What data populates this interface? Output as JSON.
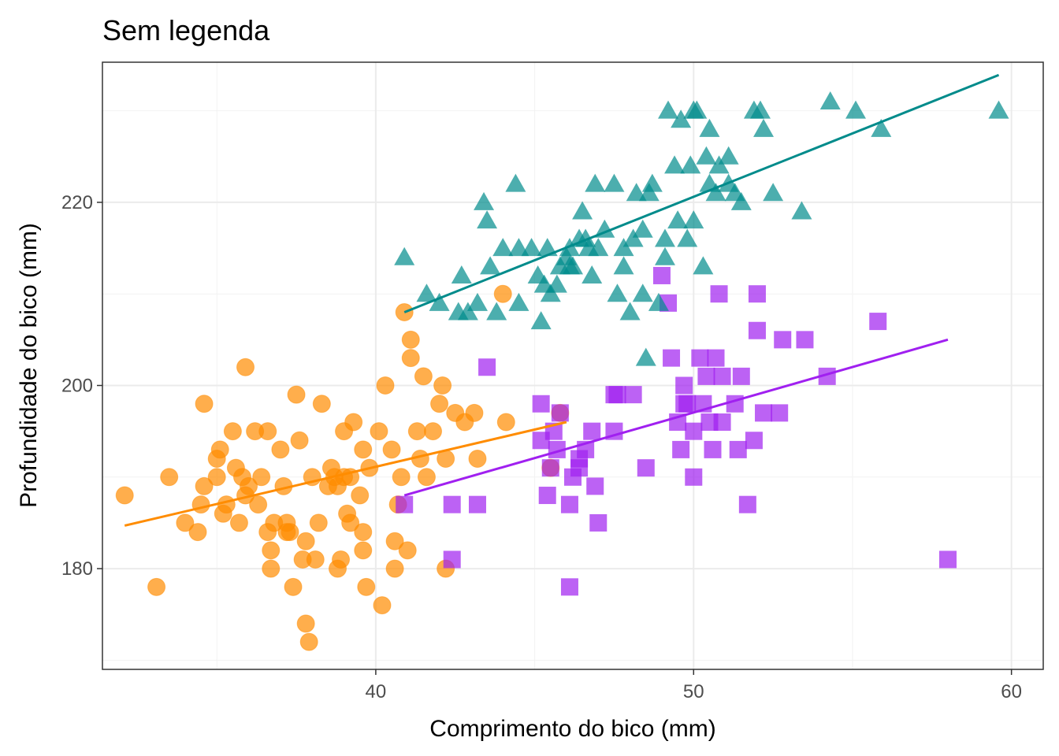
{
  "chart_data": {
    "type": "scatter",
    "title": "Sem legenda",
    "xlabel": "Comprimento do bico (mm)",
    "ylabel": "Profundidade do bico (mm)",
    "xlim": [
      31.4,
      61.0
    ],
    "ylim": [
      169.0,
      235.3
    ],
    "x_ticks": [
      40,
      50,
      60
    ],
    "x_tick_labels": [
      "40",
      "50",
      "60"
    ],
    "y_ticks": [
      180,
      200,
      220
    ],
    "y_tick_labels": [
      "180",
      "200",
      "220"
    ],
    "grid": true,
    "legend": "none",
    "series": [
      {
        "marker": "circle",
        "color": "#ff8c00",
        "fit_line": {
          "x": [
            32.1,
            46.0
          ],
          "y": [
            184.7,
            196.0
          ]
        },
        "points": [
          [
            32.1,
            188
          ],
          [
            33.1,
            178
          ],
          [
            33.5,
            190
          ],
          [
            34.0,
            185
          ],
          [
            34.4,
            184
          ],
          [
            34.5,
            187
          ],
          [
            34.6,
            198
          ],
          [
            34.6,
            189
          ],
          [
            35.0,
            192
          ],
          [
            35.1,
            193
          ],
          [
            35.0,
            190
          ],
          [
            35.2,
            186
          ],
          [
            35.3,
            187
          ],
          [
            35.5,
            195
          ],
          [
            35.6,
            191
          ],
          [
            35.7,
            185
          ],
          [
            35.8,
            190
          ],
          [
            35.9,
            202
          ],
          [
            36.0,
            189
          ],
          [
            36.2,
            195
          ],
          [
            36.3,
            187
          ],
          [
            36.4,
            190
          ],
          [
            36.6,
            184
          ],
          [
            36.7,
            182
          ],
          [
            36.7,
            180
          ],
          [
            36.8,
            185
          ],
          [
            37.0,
            193
          ],
          [
            37.1,
            189
          ],
          [
            37.2,
            185
          ],
          [
            37.3,
            184
          ],
          [
            37.4,
            178
          ],
          [
            37.5,
            199
          ],
          [
            37.6,
            194
          ],
          [
            37.7,
            181
          ],
          [
            37.8,
            183
          ],
          [
            37.8,
            174
          ],
          [
            37.9,
            172
          ],
          [
            38.0,
            190
          ],
          [
            38.1,
            181
          ],
          [
            38.2,
            185
          ],
          [
            38.3,
            198
          ],
          [
            38.5,
            189
          ],
          [
            38.6,
            191
          ],
          [
            38.7,
            190
          ],
          [
            38.8,
            180
          ],
          [
            38.9,
            181
          ],
          [
            39.0,
            195
          ],
          [
            39.0,
            190
          ],
          [
            39.1,
            186
          ],
          [
            39.2,
            185
          ],
          [
            39.3,
            196
          ],
          [
            39.5,
            188
          ],
          [
            39.6,
            193
          ],
          [
            39.6,
            184
          ],
          [
            39.7,
            178
          ],
          [
            39.8,
            191
          ],
          [
            40.1,
            195
          ],
          [
            40.2,
            176
          ],
          [
            40.3,
            200
          ],
          [
            40.5,
            193
          ],
          [
            40.6,
            183
          ],
          [
            40.6,
            180
          ],
          [
            40.7,
            187
          ],
          [
            40.8,
            190
          ],
          [
            40.9,
            208
          ],
          [
            41.1,
            203
          ],
          [
            41.1,
            205
          ],
          [
            41.3,
            195
          ],
          [
            41.4,
            192
          ],
          [
            41.5,
            201
          ],
          [
            41.6,
            190
          ],
          [
            41.8,
            195
          ],
          [
            42.0,
            198
          ],
          [
            42.1,
            200
          ],
          [
            42.2,
            192
          ],
          [
            42.5,
            197
          ],
          [
            42.8,
            196
          ],
          [
            43.1,
            197
          ],
          [
            43.2,
            192
          ],
          [
            44.1,
            196
          ],
          [
            44.0,
            210
          ],
          [
            42.2,
            180
          ],
          [
            45.8,
            197
          ],
          [
            45.5,
            191
          ],
          [
            41.0,
            182
          ],
          [
            39.2,
            190
          ],
          [
            36.6,
            195
          ],
          [
            35.9,
            188
          ],
          [
            37.2,
            184
          ],
          [
            38.8,
            189
          ],
          [
            39.6,
            182
          ]
        ]
      },
      {
        "marker": "square",
        "color": "#a020f0",
        "fit_line": {
          "x": [
            40.9,
            58.0
          ],
          "y": [
            188.0,
            205.0
          ]
        },
        "points": [
          [
            40.9,
            187
          ],
          [
            42.4,
            187
          ],
          [
            42.4,
            181
          ],
          [
            43.2,
            187
          ],
          [
            43.5,
            202
          ],
          [
            45.2,
            198
          ],
          [
            45.4,
            188
          ],
          [
            45.5,
            191
          ],
          [
            45.6,
            195
          ],
          [
            45.7,
            193
          ],
          [
            45.8,
            197
          ],
          [
            46.1,
            187
          ],
          [
            46.1,
            178
          ],
          [
            46.2,
            190
          ],
          [
            46.4,
            191
          ],
          [
            46.6,
            193
          ],
          [
            46.8,
            195
          ],
          [
            46.9,
            189
          ],
          [
            47.0,
            185
          ],
          [
            47.5,
            195
          ],
          [
            47.6,
            199
          ],
          [
            48.1,
            199
          ],
          [
            48.5,
            191
          ],
          [
            49.0,
            212
          ],
          [
            49.2,
            209
          ],
          [
            49.3,
            203
          ],
          [
            49.5,
            196
          ],
          [
            49.6,
            193
          ],
          [
            49.7,
            200
          ],
          [
            49.8,
            198
          ],
          [
            50.0,
            195
          ],
          [
            50.0,
            190
          ],
          [
            50.2,
            203
          ],
          [
            50.3,
            198
          ],
          [
            50.4,
            201
          ],
          [
            50.5,
            196
          ],
          [
            50.6,
            193
          ],
          [
            50.7,
            203
          ],
          [
            50.8,
            210
          ],
          [
            50.9,
            201
          ],
          [
            51.3,
            198
          ],
          [
            51.4,
            193
          ],
          [
            51.5,
            201
          ],
          [
            51.7,
            187
          ],
          [
            51.9,
            194
          ],
          [
            52.0,
            210
          ],
          [
            52.0,
            206
          ],
          [
            52.2,
            197
          ],
          [
            52.7,
            197
          ],
          [
            52.8,
            205
          ],
          [
            53.5,
            205
          ],
          [
            54.2,
            201
          ],
          [
            55.8,
            207
          ],
          [
            58.0,
            181
          ],
          [
            45.2,
            194
          ],
          [
            46.4,
            192
          ],
          [
            49.7,
            198
          ],
          [
            50.9,
            196
          ],
          [
            47.5,
            199
          ]
        ]
      },
      {
        "marker": "triangle",
        "color": "#008b8b",
        "fit_line": {
          "x": [
            40.9,
            59.6
          ],
          "y": [
            208.0,
            233.9
          ]
        },
        "points": [
          [
            40.9,
            214
          ],
          [
            41.6,
            210
          ],
          [
            42.0,
            209
          ],
          [
            42.6,
            208
          ],
          [
            42.7,
            212
          ],
          [
            42.9,
            208
          ],
          [
            43.2,
            209
          ],
          [
            43.4,
            220
          ],
          [
            43.5,
            218
          ],
          [
            43.6,
            213
          ],
          [
            43.8,
            208
          ],
          [
            44.0,
            215
          ],
          [
            44.4,
            222
          ],
          [
            44.5,
            209
          ],
          [
            44.9,
            215
          ],
          [
            45.1,
            212
          ],
          [
            45.2,
            207
          ],
          [
            45.4,
            215
          ],
          [
            45.5,
            210
          ],
          [
            45.7,
            211
          ],
          [
            45.8,
            213
          ],
          [
            46.0,
            214
          ],
          [
            46.1,
            215
          ],
          [
            46.2,
            213
          ],
          [
            46.4,
            216
          ],
          [
            46.5,
            219
          ],
          [
            46.6,
            216
          ],
          [
            46.8,
            212
          ],
          [
            46.9,
            222
          ],
          [
            47.0,
            215
          ],
          [
            47.2,
            217
          ],
          [
            47.5,
            222
          ],
          [
            47.6,
            210
          ],
          [
            47.8,
            215
          ],
          [
            48.0,
            208
          ],
          [
            48.1,
            216
          ],
          [
            48.2,
            221
          ],
          [
            48.4,
            210
          ],
          [
            48.5,
            203
          ],
          [
            48.6,
            221
          ],
          [
            48.7,
            222
          ],
          [
            48.9,
            209
          ],
          [
            49.1,
            216
          ],
          [
            49.2,
            230
          ],
          [
            49.4,
            224
          ],
          [
            49.5,
            218
          ],
          [
            49.6,
            229
          ],
          [
            49.8,
            216
          ],
          [
            49.9,
            224
          ],
          [
            50.0,
            230
          ],
          [
            50.1,
            230
          ],
          [
            50.3,
            213
          ],
          [
            50.4,
            225
          ],
          [
            50.5,
            222
          ],
          [
            50.7,
            221
          ],
          [
            50.8,
            224
          ],
          [
            51.1,
            222
          ],
          [
            51.3,
            221
          ],
          [
            51.5,
            220
          ],
          [
            51.9,
            230
          ],
          [
            52.1,
            230
          ],
          [
            52.2,
            228
          ],
          [
            52.5,
            221
          ],
          [
            53.4,
            219
          ],
          [
            54.3,
            231
          ],
          [
            55.1,
            230
          ],
          [
            55.9,
            228
          ],
          [
            59.6,
            230
          ],
          [
            44.5,
            215
          ],
          [
            46.1,
            213
          ],
          [
            47.8,
            213
          ],
          [
            49.1,
            214
          ],
          [
            50.5,
            228
          ],
          [
            51.1,
            225
          ],
          [
            45.3,
            211
          ],
          [
            46.7,
            215
          ],
          [
            48.4,
            217
          ],
          [
            50.0,
            218
          ]
        ]
      }
    ]
  }
}
